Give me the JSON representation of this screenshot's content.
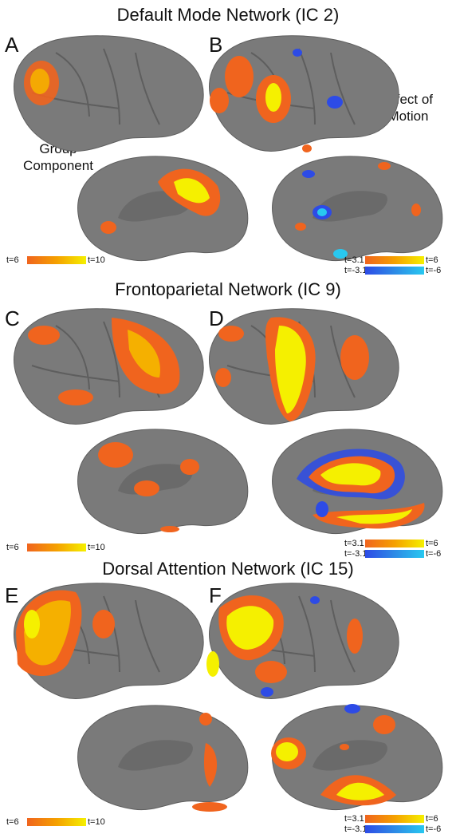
{
  "sections": [
    {
      "title": "Default Mode Network (IC 2)",
      "left_label": "A",
      "right_label": "B"
    },
    {
      "title": "Frontoparietal Network (IC 9)",
      "left_label": "C",
      "right_label": "D"
    },
    {
      "title": "Dorsal Attention Network (IC 15)",
      "left_label": "E",
      "right_label": "F"
    }
  ],
  "annotations": {
    "group_component": "Group\nComponent",
    "effect_of_motion": "Effect of\nMotion"
  },
  "colorbars": {
    "group": {
      "min": "t=6",
      "max": "t=10"
    },
    "motion_pos": {
      "min": "t=3.1",
      "max": "t=6"
    },
    "motion_neg": {
      "min": "t=-3.1",
      "max": "t=-6"
    }
  },
  "colors": {
    "cortex": "#7a7a7a",
    "cortex_dark": "#5e5e5e",
    "orange": "#f0641e",
    "yellow": "#f5f000",
    "blue": "#2d4be6",
    "light_blue": "#28c8f0"
  }
}
